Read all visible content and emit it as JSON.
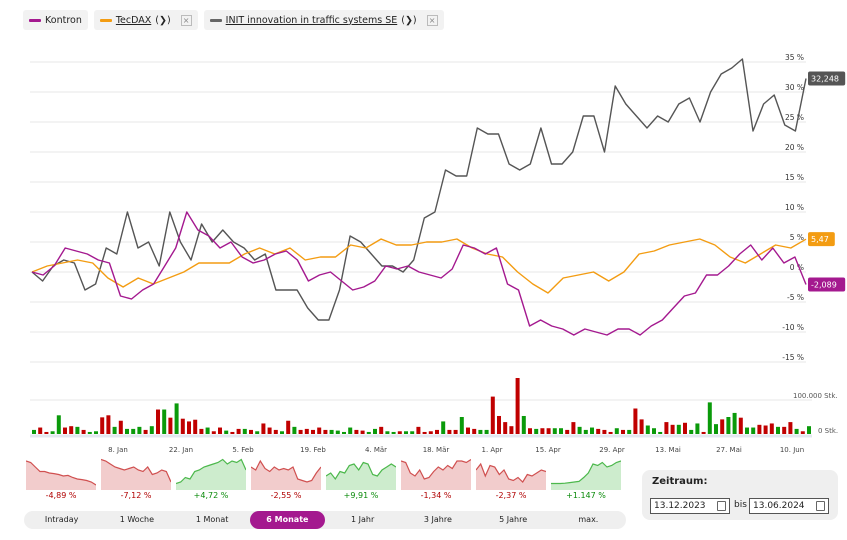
{
  "legend": [
    {
      "label": "Kontron",
      "color": "#a4198f",
      "link": false,
      "removable": false
    },
    {
      "label": "TecDAX",
      "suffix": "(❯)",
      "color": "#f39c12",
      "link": true,
      "removable": true
    },
    {
      "label": "INIT innovation in traffic systems SE",
      "suffix": "(❯)",
      "color": "#555555",
      "link": true,
      "removable": true
    }
  ],
  "chart_data": {
    "type": "line",
    "x_range": [
      "13.12.2023",
      "13.06.2024"
    ],
    "x_ticks": [
      "8. Jan",
      "22. Jan",
      "5. Feb",
      "19. Feb",
      "4. Mär",
      "18. Mär",
      "1. Apr",
      "15. Apr",
      "29. Apr",
      "13. Mai",
      "27. Mai",
      "10. Jun"
    ],
    "y_ticks": [
      "35 %",
      "30 %",
      "25 %",
      "20 %",
      "15 %",
      "10 %",
      "5 %",
      "0 %",
      "-5 %",
      "-10 %",
      "-15 %"
    ],
    "ylim": [
      -15,
      35
    ],
    "grid": true,
    "series": [
      {
        "name": "Kontron",
        "color": "#a4198f",
        "last_label": "-2,089",
        "values": [
          0,
          -0.5,
          1,
          4,
          3.5,
          3,
          2,
          1.5,
          -4,
          -4.5,
          -3,
          -2,
          1,
          4,
          10,
          7,
          6,
          4,
          5,
          2.5,
          1.5,
          2,
          3,
          3.5,
          2,
          -1.5,
          -0.5,
          0,
          -1.5,
          -3,
          -2.5,
          -1.5,
          1,
          0.5,
          1,
          0,
          -0.5,
          -1,
          0.5,
          4.5,
          4,
          3,
          4,
          -2,
          -3,
          -9,
          -8,
          -9,
          -9.5,
          -10.5,
          -9.5,
          -10,
          -10.5,
          -9.5,
          -9.5,
          -10.5,
          -9,
          -8,
          -6,
          -4,
          -3.5,
          -0.5,
          -0.5,
          1,
          3,
          4.5,
          2,
          4,
          1.5,
          2.5,
          -2.09
        ]
      },
      {
        "name": "TecDAX",
        "color": "#f39c12",
        "last_label": "5,47",
        "values": [
          0,
          1,
          1.5,
          2,
          1.5,
          -1,
          -2.5,
          -1,
          -2,
          -1,
          0,
          1.5,
          1.5,
          1.5,
          3,
          4,
          3,
          4,
          2,
          2.5,
          2.5,
          4.5,
          4,
          5.5,
          4.5,
          4.5,
          5,
          5,
          5.5,
          4,
          3,
          2.5,
          0,
          -2,
          -3.5,
          -1,
          -0.5,
          0,
          -1.5,
          0,
          3,
          3.5,
          4.5,
          5,
          5.5,
          4.5,
          2.5,
          1.5,
          3,
          4.5,
          4,
          5.47
        ]
      },
      {
        "name": "INIT innovation in traffic systems SE",
        "color": "#555555",
        "last_label": "32,248",
        "values": [
          0,
          -1.5,
          1,
          2,
          1.5,
          -3,
          -2,
          4,
          3,
          10,
          4,
          5,
          1,
          10,
          5,
          2,
          8,
          5,
          7,
          5,
          4,
          2,
          3,
          -3,
          -3,
          -3,
          -6,
          -8,
          -8,
          -3,
          6,
          5,
          3,
          1,
          1,
          0,
          2,
          9,
          10,
          17,
          16,
          16,
          24,
          23,
          23,
          18,
          17,
          18,
          24,
          18,
          18,
          20,
          26,
          26,
          20,
          31,
          28,
          26,
          24,
          26,
          25,
          28,
          29,
          25,
          30,
          33,
          34,
          35.5,
          23.5,
          28,
          29.5,
          24.5,
          23.5,
          32.25
        ]
      }
    ],
    "volume": {
      "ticks": [
        "100.000 Stk.",
        "0 Stk."
      ],
      "max": 100000,
      "up_color": "#0a9a0a",
      "down_color": "#c00000",
      "bars": [
        [
          12,
          "g"
        ],
        [
          19,
          "r"
        ],
        [
          6,
          "r"
        ],
        [
          8,
          "g"
        ],
        [
          55,
          "g"
        ],
        [
          19,
          "r"
        ],
        [
          23,
          "r"
        ],
        [
          21,
          "g"
        ],
        [
          12,
          "r"
        ],
        [
          6,
          "g"
        ],
        [
          8,
          "g"
        ],
        [
          49,
          "r"
        ],
        [
          55,
          "r"
        ],
        [
          21,
          "g"
        ],
        [
          39,
          "r"
        ],
        [
          15,
          "g"
        ],
        [
          15,
          "g"
        ],
        [
          21,
          "g"
        ],
        [
          12,
          "r"
        ],
        [
          23,
          "g"
        ],
        [
          72,
          "r"
        ],
        [
          72,
          "g"
        ],
        [
          48,
          "r"
        ],
        [
          90,
          "g"
        ],
        [
          45,
          "r"
        ],
        [
          37,
          "r"
        ],
        [
          42,
          "r"
        ],
        [
          15,
          "r"
        ],
        [
          19,
          "g"
        ],
        [
          8,
          "r"
        ],
        [
          19,
          "r"
        ],
        [
          10,
          "g"
        ],
        [
          6,
          "r"
        ],
        [
          15,
          "r"
        ],
        [
          15,
          "g"
        ],
        [
          12,
          "r"
        ],
        [
          8,
          "g"
        ],
        [
          31,
          "r"
        ],
        [
          19,
          "r"
        ],
        [
          12,
          "r"
        ],
        [
          8,
          "g"
        ],
        [
          39,
          "r"
        ],
        [
          21,
          "g"
        ],
        [
          12,
          "r"
        ],
        [
          15,
          "r"
        ],
        [
          12,
          "r"
        ],
        [
          19,
          "r"
        ],
        [
          12,
          "r"
        ],
        [
          12,
          "g"
        ],
        [
          10,
          "g"
        ],
        [
          6,
          "g"
        ],
        [
          19,
          "g"
        ],
        [
          12,
          "r"
        ],
        [
          10,
          "r"
        ],
        [
          6,
          "g"
        ],
        [
          15,
          "g"
        ],
        [
          21,
          "r"
        ],
        [
          8,
          "g"
        ],
        [
          6,
          "g"
        ],
        [
          8,
          "r"
        ],
        [
          8,
          "g"
        ],
        [
          8,
          "g"
        ],
        [
          21,
          "r"
        ],
        [
          6,
          "r"
        ],
        [
          8,
          "r"
        ],
        [
          12,
          "r"
        ],
        [
          37,
          "g"
        ],
        [
          12,
          "r"
        ],
        [
          12,
          "r"
        ],
        [
          50,
          "g"
        ],
        [
          19,
          "r"
        ],
        [
          15,
          "r"
        ],
        [
          12,
          "g"
        ],
        [
          12,
          "g"
        ],
        [
          110,
          "r"
        ],
        [
          53,
          "r"
        ],
        [
          35,
          "r"
        ],
        [
          23,
          "r"
        ],
        [
          165,
          "r"
        ],
        [
          53,
          "g"
        ],
        [
          17,
          "r"
        ],
        [
          15,
          "g"
        ],
        [
          17,
          "r"
        ],
        [
          17,
          "r"
        ],
        [
          17,
          "g"
        ],
        [
          17,
          "g"
        ],
        [
          12,
          "r"
        ],
        [
          35,
          "r"
        ],
        [
          21,
          "g"
        ],
        [
          12,
          "g"
        ],
        [
          19,
          "g"
        ],
        [
          15,
          "r"
        ],
        [
          12,
          "r"
        ],
        [
          6,
          "r"
        ],
        [
          17,
          "g"
        ],
        [
          12,
          "r"
        ],
        [
          12,
          "g"
        ],
        [
          75,
          "r"
        ],
        [
          43,
          "r"
        ],
        [
          25,
          "g"
        ],
        [
          17,
          "g"
        ],
        [
          6,
          "g"
        ],
        [
          35,
          "r"
        ],
        [
          27,
          "r"
        ],
        [
          27,
          "g"
        ],
        [
          33,
          "r"
        ],
        [
          12,
          "g"
        ],
        [
          31,
          "g"
        ],
        [
          6,
          "r"
        ],
        [
          93,
          "g"
        ],
        [
          29,
          "g"
        ],
        [
          43,
          "r"
        ],
        [
          50,
          "g"
        ],
        [
          62,
          "g"
        ],
        [
          48,
          "r"
        ],
        [
          19,
          "g"
        ],
        [
          19,
          "g"
        ],
        [
          27,
          "r"
        ],
        [
          25,
          "r"
        ],
        [
          31,
          "r"
        ],
        [
          21,
          "g"
        ],
        [
          21,
          "r"
        ],
        [
          35,
          "r"
        ],
        [
          15,
          "g"
        ],
        [
          8,
          "r"
        ],
        [
          23,
          "g"
        ]
      ]
    }
  },
  "thumbnails": [
    {
      "label": "-4,89 %",
      "trend": "down",
      "values": [
        90,
        85,
        70,
        55,
        55,
        50,
        48,
        45,
        40,
        42,
        35,
        30,
        28,
        25,
        20,
        10
      ]
    },
    {
      "label": "-7,12 %",
      "trend": "down",
      "values": [
        95,
        90,
        80,
        70,
        65,
        60,
        65,
        70,
        60,
        55,
        70,
        45,
        50,
        60,
        55,
        20
      ]
    },
    {
      "label": "+4,72 %",
      "trend": "up",
      "values": [
        15,
        20,
        35,
        30,
        55,
        60,
        70,
        75,
        80,
        85,
        95,
        80,
        90,
        85,
        95,
        60
      ]
    },
    {
      "label": "-2,55 %",
      "trend": "down",
      "values": [
        70,
        60,
        90,
        65,
        55,
        70,
        60,
        65,
        60,
        70,
        30,
        25,
        20,
        25,
        50,
        70
      ]
    },
    {
      "label": "+9,91 %",
      "trend": "up",
      "values": [
        40,
        50,
        30,
        55,
        50,
        75,
        80,
        60,
        85,
        80,
        45,
        40,
        60,
        70,
        80,
        70
      ]
    },
    {
      "label": "-1,34 %",
      "trend": "down",
      "values": [
        90,
        85,
        50,
        40,
        60,
        30,
        35,
        55,
        70,
        60,
        75,
        65,
        90,
        90,
        85,
        95
      ]
    },
    {
      "label": "-2,37 %",
      "trend": "down",
      "values": [
        60,
        80,
        40,
        75,
        70,
        45,
        60,
        30,
        25,
        35,
        20,
        45,
        40,
        50,
        60,
        55
      ]
    },
    {
      "label": "+1.147 %",
      "trend": "up",
      "values": [
        15,
        15,
        15,
        16,
        18,
        20,
        22,
        35,
        50,
        80,
        75,
        85,
        70,
        75,
        85,
        90
      ]
    }
  ],
  "periods": [
    "Intraday",
    "1 Woche",
    "1 Monat",
    "6 Monate",
    "1 Jahr",
    "3 Jahre",
    "5 Jahre",
    "max."
  ],
  "active_period": "6 Monate",
  "zeitraum": {
    "title": "Zeitraum:",
    "from": "13.12.2023",
    "bis": "bis",
    "to": "13.06.2024"
  }
}
